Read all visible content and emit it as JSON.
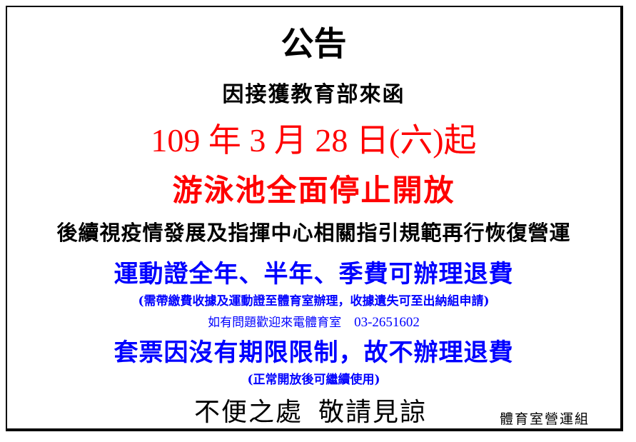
{
  "notice": {
    "title": "公告",
    "subtitle": "因接獲教育部來函",
    "date_line": "109 年 3 月 28 日(六)起",
    "closure": "游泳池全面停止開放",
    "followup": "後續視疫情發展及指揮中心相關指引規範再行恢復營運",
    "refund": "運動證全年、半年、季費可辦理退費",
    "refund_note": "(需帶繳費收據及運動證至體育室辦理，收據遺失可至出納組申請)",
    "contact_label": "如有問題歡迎來電體育室",
    "contact_phone": "03-2651602",
    "ticket": "套票因沒有期限限制，故不辦理退費",
    "ticket_note": "(正常開放後可繼續使用)",
    "closing_1": "不便之處",
    "closing_2": "敬請見諒",
    "signature": "體育室營運組"
  },
  "colors": {
    "emphasis": "#ff0000",
    "info": "#0000ff",
    "text": "#000000"
  }
}
